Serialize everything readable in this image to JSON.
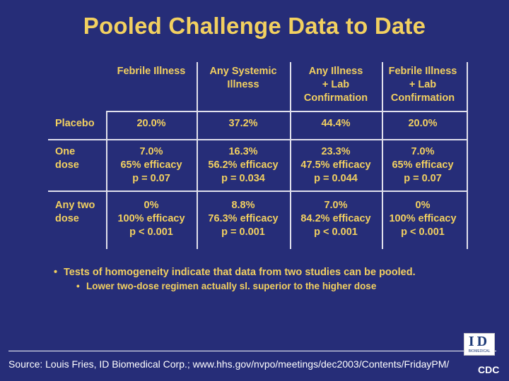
{
  "title": "Pooled Challenge Data to Date",
  "table": {
    "headers": [
      [
        "Febrile Illness"
      ],
      [
        "Any Systemic",
        "Illness"
      ],
      [
        "Any Illness",
        "+ Lab",
        "Confirmation"
      ],
      [
        "Febrile Illness",
        "+ Lab",
        "Confirmation"
      ]
    ],
    "rows": [
      {
        "label": [
          "Placebo"
        ],
        "cells": [
          [
            "20.0%"
          ],
          [
            "37.2%"
          ],
          [
            "44.4%"
          ],
          [
            "20.0%"
          ]
        ]
      },
      {
        "label": [
          "One",
          "dose"
        ],
        "cells": [
          [
            "7.0%",
            "65% efficacy",
            "p = 0.07"
          ],
          [
            "16.3%",
            "56.2% efficacy",
            "p = 0.034"
          ],
          [
            "23.3%",
            "47.5% efficacy",
            "p = 0.044"
          ],
          [
            "7.0%",
            "65% efficacy",
            "p = 0.07"
          ]
        ]
      },
      {
        "label": [
          "Any two",
          "dose"
        ],
        "cells": [
          [
            "0%",
            "100% efficacy",
            "p < 0.001"
          ],
          [
            "8.8%",
            "76.3% efficacy",
            "p = 0.001"
          ],
          [
            "7.0%",
            "84.2% efficacy",
            "p < 0.001"
          ],
          [
            "0%",
            "100% efficacy",
            "p < 0.001"
          ]
        ]
      }
    ]
  },
  "bullets": {
    "main": "Tests of homogeneity indicate that data from two studies can be pooled.",
    "sub": "Lower two-dose regimen actually sl. superior to the higher dose"
  },
  "footer": {
    "source": "Source: Louis Fries, ID Biomedical Corp.; www.hhs.gov/nvpo/meetings/dec2003/Contents/FridayPM/",
    "logo_id_letters": "ID",
    "logo_id_sub": "BIOMEDICAL",
    "logo_cdc": "CDC"
  },
  "colors": {
    "background": "#262d78",
    "text_yellow": "#f2d060",
    "grid_lines": "#e0e0ec"
  }
}
